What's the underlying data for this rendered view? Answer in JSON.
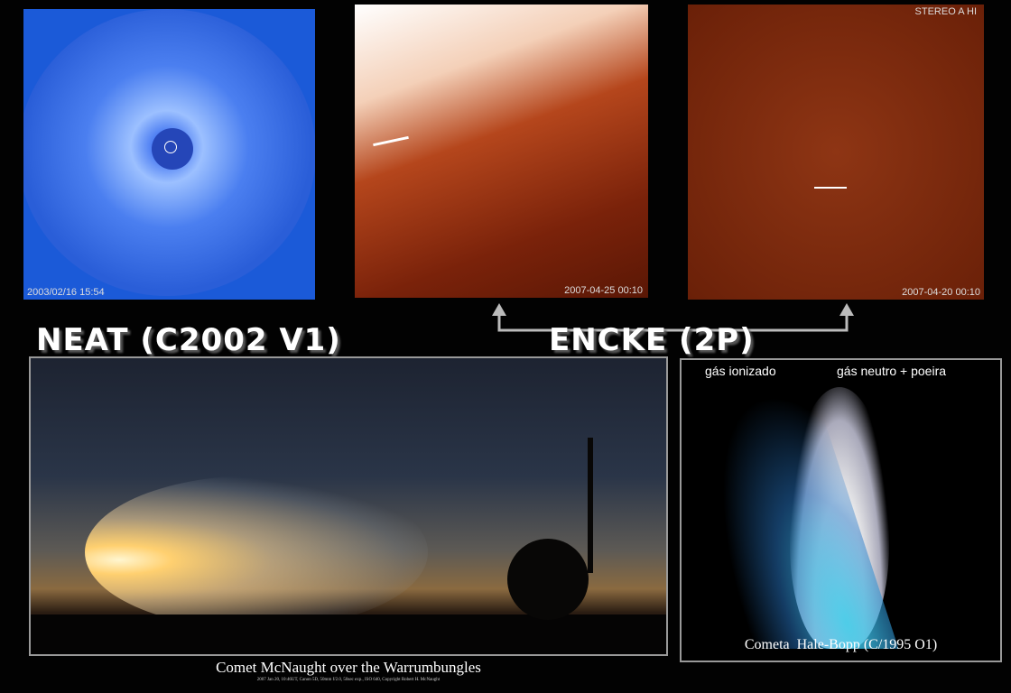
{
  "soho_image": {
    "timestamp": "2003/02/16 15:54"
  },
  "stereo_image_1": {
    "timestamp": "2007-04-25 00:10"
  },
  "stereo_image_2": {
    "instrument": "STEREO A HI",
    "timestamp": "2007-04-20 00:10"
  },
  "labels": {
    "neat": "NEAT (C2002 V1)",
    "encke": "ENCKE (2P)"
  },
  "mcnaught_image": {
    "caption": "Comet McNaught over the Warrumbungles",
    "credit": "2007 Jan 20, 10:46UT, Canon 5D, 50mm f/2.0, 50sec exp., ISO 640, Copyright Robert H. McNaught"
  },
  "hale_bopp_image": {
    "ion_tail": "gás ionizado",
    "dust_tail": "gás neutro + poeira",
    "caption": "Cometa  Hale-Bopp (C/1995 O1)"
  }
}
